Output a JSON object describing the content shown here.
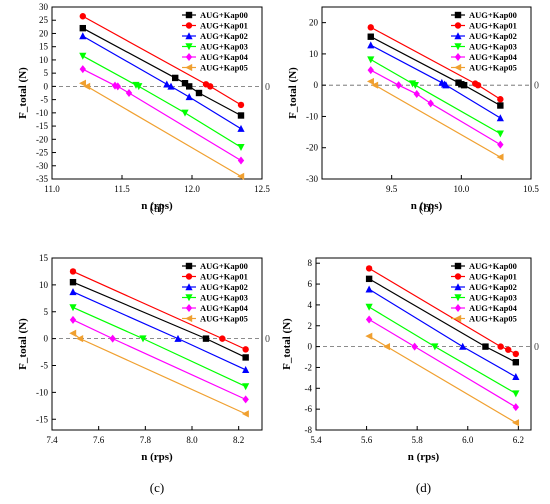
{
  "figure": {
    "panel_labels": [
      "(a)",
      "(b)",
      "(c)",
      "(d)"
    ]
  },
  "series_style": [
    {
      "name": "AUG+Kap00",
      "color": "#000000",
      "marker": "square"
    },
    {
      "name": "AUG+Kap01",
      "color": "#ff0000",
      "marker": "circle"
    },
    {
      "name": "AUG+Kap02",
      "color": "#0000ff",
      "marker": "triangle-up"
    },
    {
      "name": "AUG+Kap03",
      "color": "#00ff00",
      "marker": "triangle-down"
    },
    {
      "name": "AUG+Kap04",
      "color": "#ff00ff",
      "marker": "diamond"
    },
    {
      "name": "AUG+Kap05",
      "color": "#f0a030",
      "marker": "triangle-left"
    }
  ],
  "chart_data": [
    {
      "type": "line",
      "panel": "(a)",
      "xlabel": "n (rps)",
      "ylabel": "F_total (N)",
      "xlim": [
        11.0,
        12.5
      ],
      "ylim": [
        -35,
        30
      ],
      "xticks": [
        11.0,
        11.5,
        12.0,
        12.5
      ],
      "yticks": [
        -35,
        -30,
        -25,
        -20,
        -15,
        -10,
        -5,
        0,
        5,
        10,
        15,
        20,
        25,
        30
      ],
      "zero_label": "0",
      "legend": "top-right",
      "series": [
        {
          "name": "AUG+Kap00",
          "points": [
            [
              11.22,
              22
            ],
            [
              11.88,
              3.2
            ],
            [
              11.95,
              1.2
            ],
            [
              11.98,
              0.0
            ],
            [
              12.05,
              -2.5
            ],
            [
              12.35,
              -11
            ]
          ]
        },
        {
          "name": "AUG+Kap01",
          "points": [
            [
              11.22,
              26.5
            ],
            [
              12.1,
              0.8
            ],
            [
              12.13,
              0.0
            ],
            [
              12.35,
              -7
            ]
          ]
        },
        {
          "name": "AUG+Kap02",
          "points": [
            [
              11.22,
              19
            ],
            [
              11.82,
              0.8
            ],
            [
              11.85,
              0.0
            ],
            [
              11.98,
              -4
            ],
            [
              12.35,
              -16
            ]
          ]
        },
        {
          "name": "AUG+Kap03",
          "points": [
            [
              11.22,
              11.5
            ],
            [
              11.6,
              0.5
            ],
            [
              11.62,
              0.0
            ],
            [
              11.95,
              -10
            ],
            [
              12.35,
              -23
            ]
          ]
        },
        {
          "name": "AUG+Kap04",
          "points": [
            [
              11.22,
              6.5
            ],
            [
              11.45,
              0.3
            ],
            [
              11.47,
              0.0
            ],
            [
              11.55,
              -2.5
            ],
            [
              12.35,
              -28
            ]
          ]
        },
        {
          "name": "AUG+Kap05",
          "points": [
            [
              11.22,
              1.2
            ],
            [
              11.25,
              0.0
            ],
            [
              12.35,
              -34
            ]
          ]
        }
      ]
    },
    {
      "type": "line",
      "panel": "(b)",
      "xlabel": "n (rps)",
      "ylabel": "F_total (N)",
      "xlim": [
        9.0,
        10.5
      ],
      "ylim": [
        -30,
        25
      ],
      "xticks": [
        9.5,
        10.0,
        10.5
      ],
      "yticks": [
        -30,
        -20,
        -10,
        0,
        10,
        20
      ],
      "zero_label": "0",
      "legend": "top-right",
      "series": [
        {
          "name": "AUG+Kap00",
          "points": [
            [
              9.35,
              15.5
            ],
            [
              9.98,
              0.8
            ],
            [
              10.0,
              0.3
            ],
            [
              10.02,
              0.0
            ],
            [
              10.28,
              -6.5
            ]
          ]
        },
        {
          "name": "AUG+Kap01",
          "points": [
            [
              9.35,
              18.5
            ],
            [
              10.1,
              0.5
            ],
            [
              10.12,
              0.0
            ],
            [
              10.28,
              -4.5
            ]
          ]
        },
        {
          "name": "AUG+Kap02",
          "points": [
            [
              9.35,
              12.8
            ],
            [
              9.86,
              0.8
            ],
            [
              9.88,
              0.3
            ],
            [
              9.89,
              0.0
            ],
            [
              10.28,
              -10.5
            ]
          ]
        },
        {
          "name": "AUG+Kap03",
          "points": [
            [
              9.35,
              8.2
            ],
            [
              9.65,
              0.5
            ],
            [
              9.67,
              0.0
            ],
            [
              10.28,
              -15.5
            ]
          ]
        },
        {
          "name": "AUG+Kap04",
          "points": [
            [
              9.35,
              4.8
            ],
            [
              9.55,
              0.0
            ],
            [
              9.68,
              -2.8
            ],
            [
              9.78,
              -5.8
            ],
            [
              10.28,
              -19
            ]
          ]
        },
        {
          "name": "AUG+Kap05",
          "points": [
            [
              9.35,
              1.2
            ],
            [
              9.38,
              0.0
            ],
            [
              10.28,
              -23
            ]
          ]
        }
      ]
    },
    {
      "type": "line",
      "panel": "(c)",
      "xlabel": "n (rps)",
      "ylabel": "F_total (N)",
      "xlim": [
        7.4,
        8.3
      ],
      "ylim": [
        -17,
        15
      ],
      "xticks": [
        7.4,
        7.6,
        7.8,
        8.0,
        8.2
      ],
      "yticks": [
        -15,
        -10,
        -5,
        0,
        5,
        10,
        15
      ],
      "zero_label": "0",
      "legend": "top-right",
      "series": [
        {
          "name": "AUG+Kap00",
          "points": [
            [
              7.49,
              10.5
            ],
            [
              8.06,
              0.0
            ],
            [
              8.23,
              -3.5
            ]
          ]
        },
        {
          "name": "AUG+Kap01",
          "points": [
            [
              7.49,
              12.5
            ],
            [
              8.13,
              0.0
            ],
            [
              8.23,
              -2.0
            ]
          ]
        },
        {
          "name": "AUG+Kap02",
          "points": [
            [
              7.49,
              8.7
            ],
            [
              7.94,
              0.0
            ],
            [
              8.23,
              -5.8
            ]
          ]
        },
        {
          "name": "AUG+Kap03",
          "points": [
            [
              7.49,
              5.8
            ],
            [
              7.79,
              0.0
            ],
            [
              8.23,
              -8.9
            ]
          ]
        },
        {
          "name": "AUG+Kap04",
          "points": [
            [
              7.49,
              3.5
            ],
            [
              7.66,
              0.0
            ],
            [
              8.23,
              -11.3
            ]
          ]
        },
        {
          "name": "AUG+Kap05",
          "points": [
            [
              7.49,
              1.0
            ],
            [
              7.52,
              0.0
            ],
            [
              8.23,
              -14
            ]
          ]
        }
      ]
    },
    {
      "type": "line",
      "panel": "(d)",
      "xlabel": "n (rps)",
      "ylabel": "F_total (N)",
      "xlim": [
        5.4,
        6.25
      ],
      "ylim": [
        -8,
        8.5
      ],
      "xticks": [
        5.4,
        5.6,
        5.8,
        6.0,
        6.2
      ],
      "yticks": [
        -8,
        -6,
        -4,
        -2,
        0,
        2,
        4,
        6,
        8
      ],
      "zero_label": "0",
      "legend": "top-right",
      "series": [
        {
          "name": "AUG+Kap00",
          "points": [
            [
              5.61,
              6.5
            ],
            [
              6.07,
              0.0
            ],
            [
              6.19,
              -1.5
            ]
          ]
        },
        {
          "name": "AUG+Kap01",
          "points": [
            [
              5.61,
              7.5
            ],
            [
              6.13,
              0.0
            ],
            [
              6.16,
              -0.3
            ],
            [
              6.19,
              -0.7
            ]
          ]
        },
        {
          "name": "AUG+Kap02",
          "points": [
            [
              5.61,
              5.5
            ],
            [
              5.98,
              0.0
            ],
            [
              6.19,
              -2.9
            ]
          ]
        },
        {
          "name": "AUG+Kap03",
          "points": [
            [
              5.61,
              3.8
            ],
            [
              5.87,
              0.0
            ],
            [
              6.19,
              -4.5
            ]
          ]
        },
        {
          "name": "AUG+Kap04",
          "points": [
            [
              5.61,
              2.6
            ],
            [
              5.79,
              0.0
            ],
            [
              6.19,
              -5.8
            ]
          ]
        },
        {
          "name": "AUG+Kap05",
          "points": [
            [
              5.61,
              1.0
            ],
            [
              5.68,
              0.0
            ],
            [
              6.19,
              -7.3
            ]
          ]
        }
      ]
    }
  ]
}
